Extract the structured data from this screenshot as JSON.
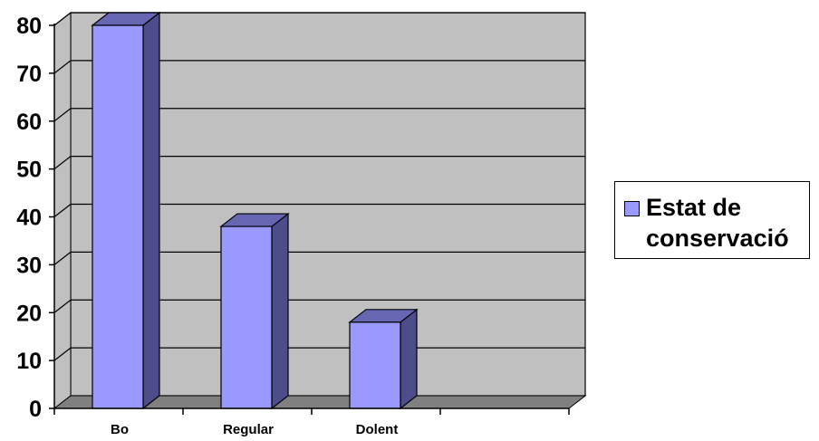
{
  "chart_data": {
    "type": "bar",
    "title": "",
    "xlabel": "",
    "ylabel": "",
    "categories": [
      "Bo",
      "Regular",
      "Dolent"
    ],
    "series": [
      {
        "name": "Estat de conservació",
        "values": [
          80,
          38,
          18
        ]
      }
    ],
    "ylim": [
      0,
      80
    ],
    "yticks": [
      "0",
      "10",
      "20",
      "30",
      "40",
      "50",
      "60",
      "70",
      "80"
    ],
    "grid": true,
    "style": "3d-column",
    "legend_position": "right",
    "colors": {
      "bar_front": "#9999ff",
      "bar_side": "#4d4d8c",
      "bar_top": "#6666b3",
      "plot_back": "#c0c0c0",
      "floor": "#808080",
      "grid": "#000000"
    }
  },
  "legend": {
    "label": "Estat de conservació"
  }
}
